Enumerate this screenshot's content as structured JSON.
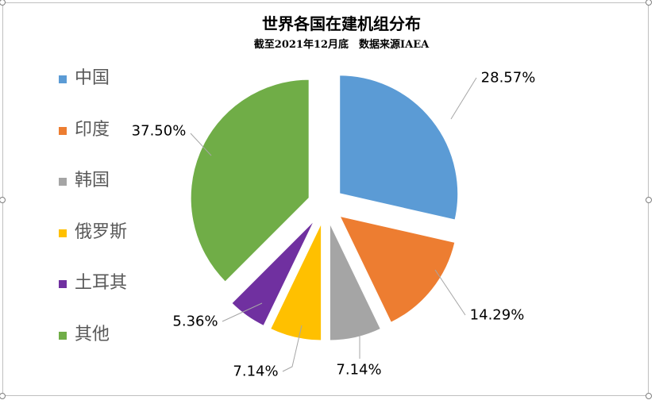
{
  "chart_data": {
    "type": "pie",
    "title": "世界各国在建机组分布",
    "subtitle": "截至2021年12月底　数据来源IAEA",
    "legend_position": "left",
    "slices": [
      {
        "name": "中国",
        "value": 28.57,
        "label": "28.57%",
        "color": "#5b9bd5"
      },
      {
        "name": "印度",
        "value": 14.29,
        "label": "14.29%",
        "color": "#ed7d31"
      },
      {
        "name": "韩国",
        "value": 7.14,
        "label": "7.14%",
        "color": "#a5a5a5"
      },
      {
        "name": "俄罗斯",
        "value": 7.14,
        "label": "7.14%",
        "color": "#ffc000"
      },
      {
        "name": "土耳其",
        "value": 5.36,
        "label": "5.36%",
        "color": "#7030a0"
      },
      {
        "name": "其他",
        "value": 37.5,
        "label": "37.50%",
        "color": "#70ad47"
      }
    ]
  }
}
